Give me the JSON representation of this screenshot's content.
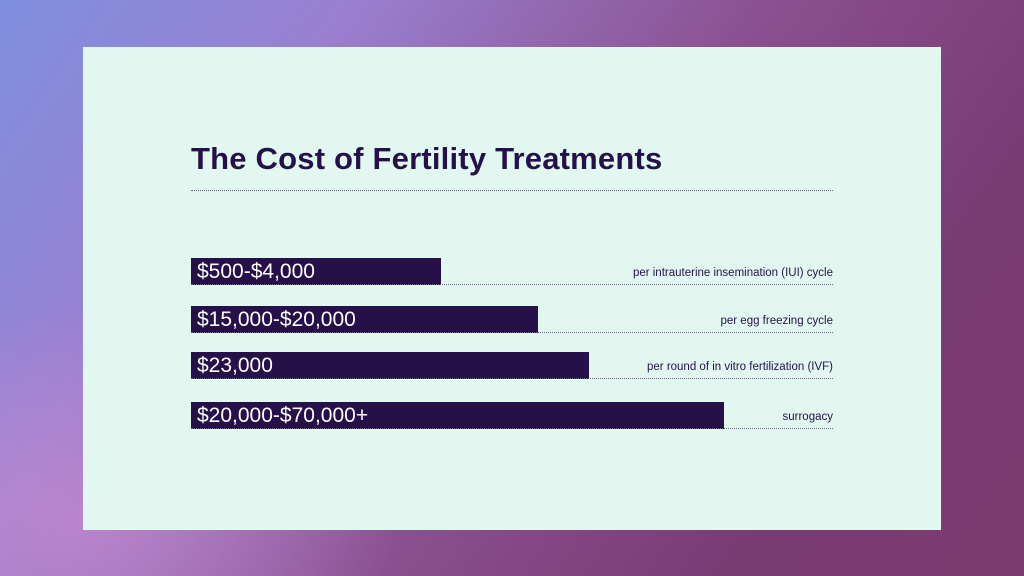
{
  "colors": {
    "card": "#e2f7f0",
    "bar": "#25104a",
    "text": "#24114a"
  },
  "chart_data": {
    "type": "bar",
    "orientation": "horizontal",
    "title": "The Cost of Fertility Treatments",
    "items": [
      {
        "value_label": "$500-$4,000",
        "description": "per intrauterine insemination (IUI) cycle",
        "bar_fraction": 0.39
      },
      {
        "value_label": "$15,000-$20,000",
        "description": "per egg freezing cycle",
        "bar_fraction": 0.54
      },
      {
        "value_label": "$23,000",
        "description": "per round of in vitro fertilization (IVF)",
        "bar_fraction": 0.62
      },
      {
        "value_label": "$20,000-$70,000+",
        "description": "surrogacy",
        "bar_fraction": 0.83
      }
    ]
  }
}
